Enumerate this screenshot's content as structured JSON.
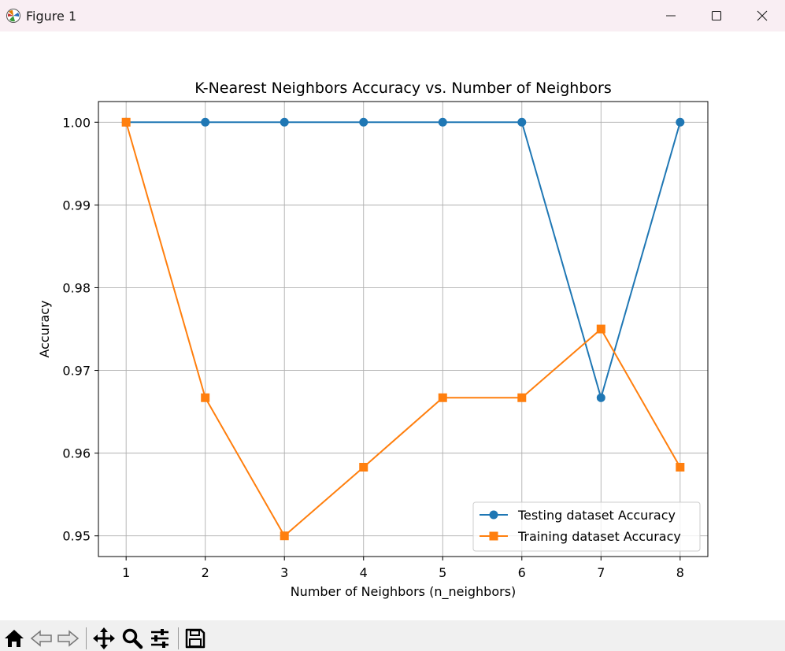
{
  "window": {
    "title": "Figure 1",
    "controls": [
      "minimize",
      "maximize",
      "close"
    ]
  },
  "toolbar": {
    "buttons": [
      {
        "name": "home-icon",
        "tooltip": "Reset original view"
      },
      {
        "name": "back-icon",
        "tooltip": "Back to previous view"
      },
      {
        "name": "forward-icon",
        "tooltip": "Forward to next view"
      },
      {
        "name": "pan-icon",
        "tooltip": "Pan axes"
      },
      {
        "name": "zoom-icon",
        "tooltip": "Zoom to rectangle"
      },
      {
        "name": "configure-subplots-icon",
        "tooltip": "Configure subplots"
      },
      {
        "name": "save-icon",
        "tooltip": "Save the figure"
      }
    ]
  },
  "colors": {
    "testing": "#1f77b4",
    "training": "#ff7f0e",
    "grid": "#b0b0b0",
    "titlebar": "#f9eef3",
    "toolbar": "#f0f0f0"
  },
  "chart_data": {
    "type": "line",
    "title": "K-Nearest Neighbors Accuracy vs. Number of Neighbors",
    "xlabel": "Number of Neighbors (n_neighbors)",
    "ylabel": "Accuracy",
    "x": [
      1,
      2,
      3,
      4,
      5,
      6,
      7,
      8
    ],
    "xlim": [
      0.65,
      8.35
    ],
    "ylim": [
      0.9475,
      1.0025
    ],
    "xticks": [
      1,
      2,
      3,
      4,
      5,
      6,
      7,
      8
    ],
    "yticks": [
      0.95,
      0.96,
      0.97,
      0.98,
      0.99,
      1.0
    ],
    "ytick_labels": [
      "0.95",
      "0.96",
      "0.97",
      "0.98",
      "0.99",
      "1.00"
    ],
    "grid": true,
    "legend_position": "lower right",
    "series": [
      {
        "name": "Testing dataset Accuracy",
        "marker": "circle",
        "color": "#1f77b4",
        "values": [
          1.0,
          1.0,
          1.0,
          1.0,
          1.0,
          1.0,
          0.9667,
          1.0
        ]
      },
      {
        "name": "Training dataset Accuracy",
        "marker": "square",
        "color": "#ff7f0e",
        "values": [
          1.0,
          0.9667,
          0.95,
          0.9583,
          0.9667,
          0.9667,
          0.975,
          0.9583
        ]
      }
    ]
  }
}
